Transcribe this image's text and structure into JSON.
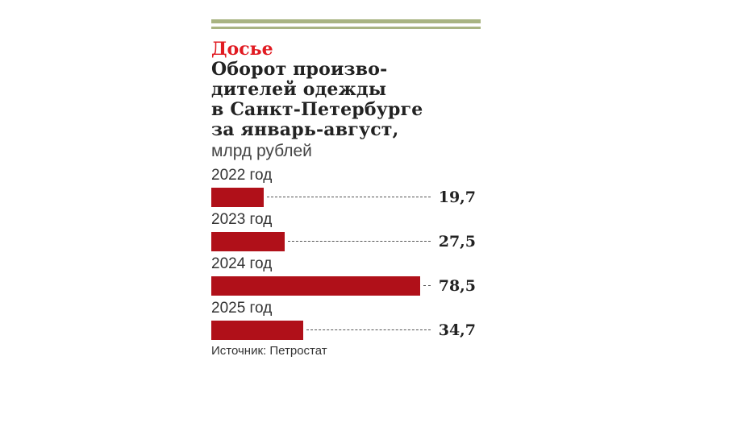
{
  "kicker": "Досье",
  "title": "Оборот произво-\nдителей одежды\nв Санкт-Петербурге\nза январь-август,",
  "units": "млрд рублей",
  "source": "Источник: Петростат",
  "colors": {
    "bar": "#b01019",
    "kicker": "#e11b22",
    "rule": "#a9b482"
  },
  "chart_data": {
    "type": "bar",
    "orientation": "horizontal",
    "title": "Оборот производителей одежды в Санкт-Петербурге за январь-август",
    "units": "млрд рублей",
    "categories": [
      "2022 год",
      "2023 год",
      "2024 год",
      "2025 год"
    ],
    "values": [
      19.7,
      27.5,
      78.5,
      34.7
    ],
    "value_labels": [
      "19,7",
      "27,5",
      "78,5",
      "34,7"
    ]
  }
}
